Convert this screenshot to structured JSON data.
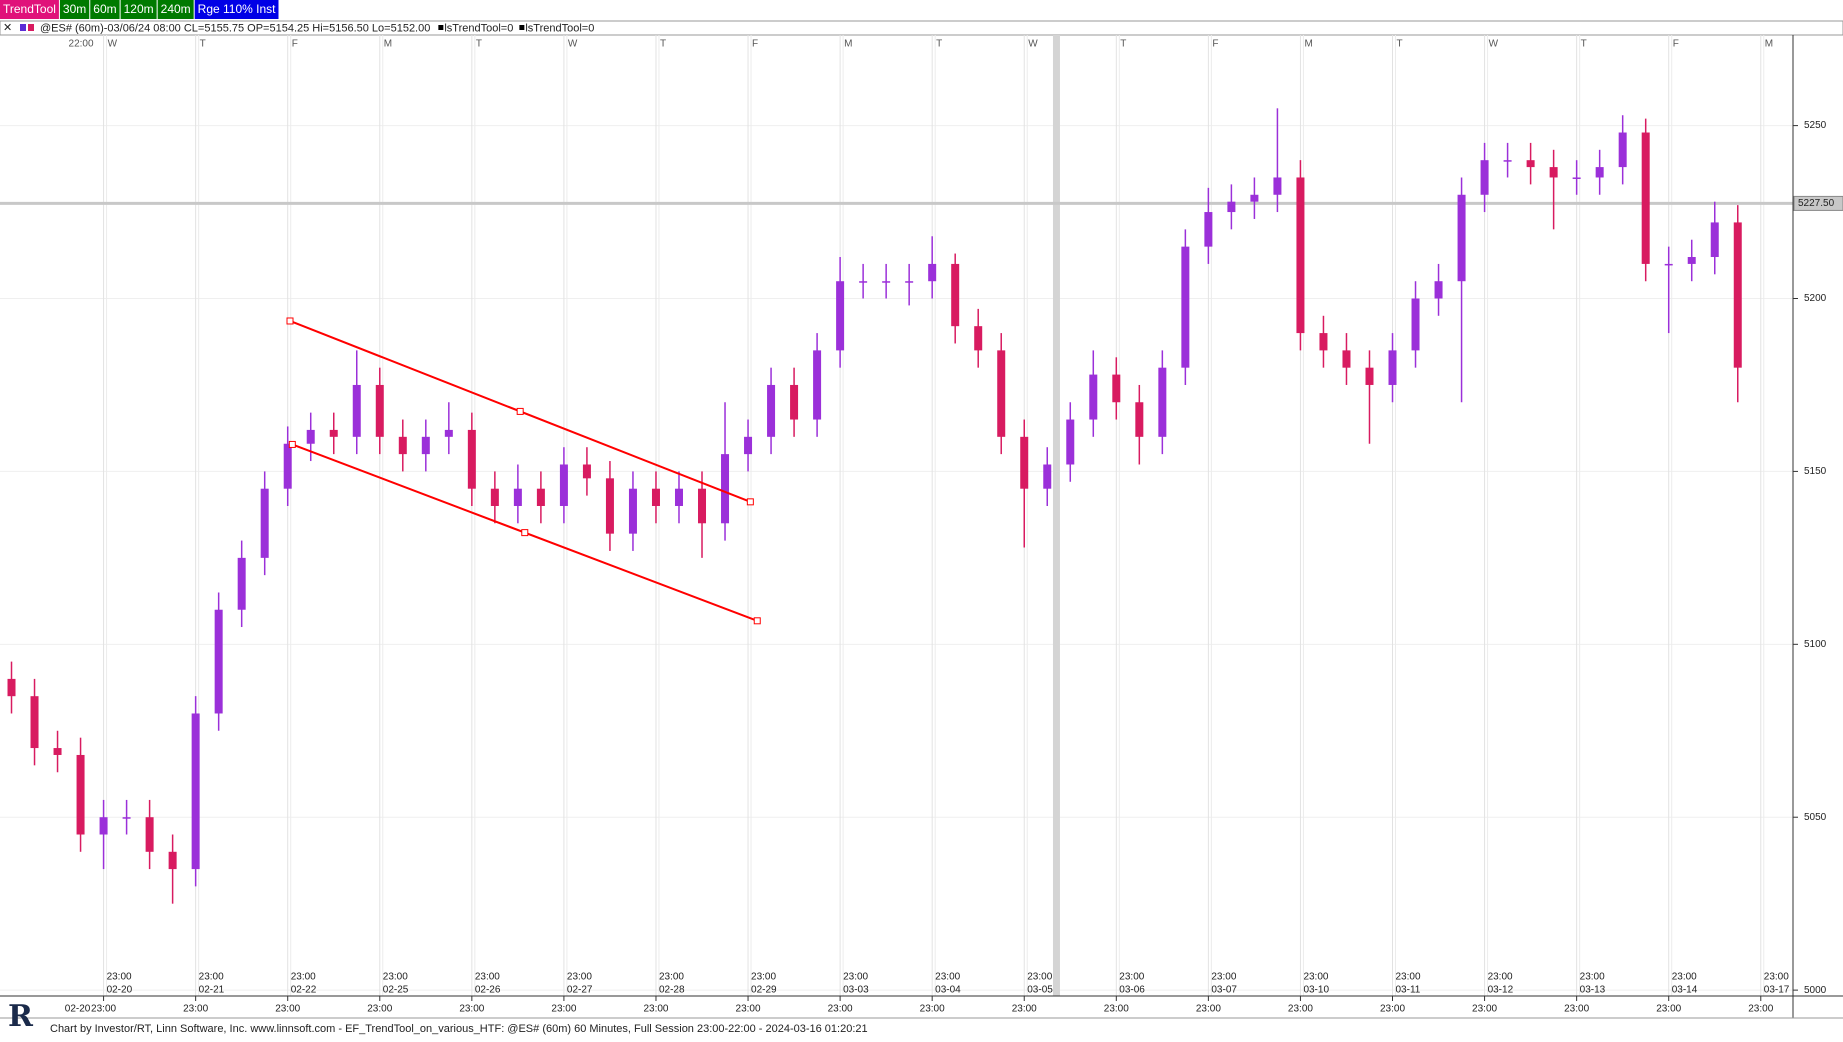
{
  "toolbar": [
    {
      "label": "TrendTool",
      "color": "#e0127a"
    },
    {
      "label": "30m",
      "color": "#007a00"
    },
    {
      "label": "60m",
      "color": "#007a00"
    },
    {
      "label": "120m",
      "color": "#007a00"
    },
    {
      "label": "240m",
      "color": "#007a00"
    },
    {
      "label": "Rge 110% Inst",
      "color": "#0000e6"
    }
  ],
  "info_bar": {
    "quote": "@ES# (60m)-03/06/24 08:00 CL=5155.75 OP=5154.25 Hi=5156.50 Lo=5152.00",
    "indicators": [
      "lsTrendTool=0",
      "lsTrendTool=0"
    ]
  },
  "footer": "Chart by Investor/RT, Linn Software, Inc. www.linnsoft.com - EF_TrendTool_on_various_HTF: @ES# (60m) 60 Minutes, Full Session 23:00-22:00 - 2024-03-16 01:20:21",
  "chart_data": {
    "type": "candlestick",
    "up_color": "#9b30d9",
    "down_color": "#d81b60",
    "xlim": [
      -0.5,
      77.4
    ],
    "ylim": [
      4998.3,
      5276.2
    ],
    "yticks": [
      5000,
      5050,
      5100,
      5150,
      5200,
      5250
    ],
    "xticks": [
      {
        "value": 4,
        "label": "02-20"
      },
      {
        "value": 8,
        "label": "02-21"
      },
      {
        "value": 12,
        "label": "02-22"
      },
      {
        "value": 16,
        "label": "02-25"
      },
      {
        "value": 20,
        "label": "02-26"
      },
      {
        "value": 24,
        "label": "02-27"
      },
      {
        "value": 28,
        "label": "02-28"
      },
      {
        "value": 32,
        "label": "02-29"
      },
      {
        "value": 36,
        "label": "03-03"
      },
      {
        "value": 40,
        "label": "03-04"
      },
      {
        "value": 44,
        "label": "03-05"
      },
      {
        "value": 48,
        "label": "03-06"
      },
      {
        "value": 52,
        "label": "03-07"
      },
      {
        "value": 56,
        "label": "03-10"
      },
      {
        "value": 60,
        "label": "03-11"
      },
      {
        "value": 64,
        "label": "03-12"
      },
      {
        "value": 68,
        "label": "03-13"
      },
      {
        "value": 72,
        "label": "03-14"
      },
      {
        "value": 76,
        "label": "03-17"
      }
    ],
    "xtick_times": [
      "23:00",
      "23:00",
      "23:00",
      "23:00",
      "23:00",
      "23:00",
      "23:00",
      "23:00",
      "23:00",
      "23:00",
      "23:00",
      "23:00",
      "23:00",
      "23:00",
      "23:00",
      "23:00",
      "23:00",
      "23:00",
      "23:00"
    ],
    "xtick_weekdays": [
      "W",
      "T",
      "F",
      "M",
      "T",
      "W",
      "T",
      "F",
      "M",
      "T",
      "W",
      "T",
      "F",
      "M",
      "T",
      "W",
      "T",
      "F",
      "M"
    ],
    "top_start_time": "22:00",
    "bottom_axis": {
      "start_label": "02-20",
      "labels": [
        "23:00",
        "23:00",
        "23:00",
        "23:00",
        "23:00",
        "23:00",
        "23:00",
        "23:00",
        "23:00",
        "23:00",
        "23:00",
        "23:00",
        "23:00",
        "23:00",
        "23:00",
        "23:00",
        "23:00",
        "23:00",
        "23:00"
      ]
    },
    "grid": true,
    "highlight_x": 45.4,
    "hline": {
      "value": 5227.5,
      "label": "5227.50",
      "color": "#c8c8c8"
    },
    "open": [
      5090,
      5085,
      5070,
      5068,
      5045,
      5050,
      5050,
      5040,
      5035,
      5080,
      5110,
      5125,
      5145,
      5158,
      5162,
      5160,
      5175,
      5160,
      5155,
      5160,
      5162,
      5145,
      5140,
      5145,
      5140,
      5152,
      5148,
      5132,
      5145,
      5140,
      5145,
      5135,
      5155,
      5160,
      5175,
      5165,
      5185,
      5205,
      5205,
      5205,
      5205,
      5210,
      5192,
      5185,
      5160,
      5145,
      5152,
      5165,
      5178,
      5170,
      5160,
      5180,
      5215,
      5225,
      5228,
      5230,
      5235,
      5190,
      5185,
      5180,
      5175,
      5185,
      5200,
      5205,
      5230,
      5240,
      5240,
      5238,
      5235,
      5235,
      5238,
      5248,
      5210,
      5210,
      5212,
      5222
    ],
    "high": [
      5095,
      5090,
      5075,
      5073,
      5055,
      5055,
      5055,
      5045,
      5085,
      5115,
      5130,
      5150,
      5163,
      5167,
      5167,
      5185,
      5180,
      5165,
      5165,
      5170,
      5167,
      5150,
      5152,
      5150,
      5157,
      5157,
      5153,
      5150,
      5150,
      5150,
      5150,
      5170,
      5165,
      5180,
      5180,
      5190,
      5212,
      5210,
      5210,
      5210,
      5218,
      5213,
      5197,
      5190,
      5165,
      5157,
      5170,
      5185,
      5183,
      5175,
      5185,
      5220,
      5232,
      5233,
      5235,
      5255,
      5240,
      5195,
      5190,
      5185,
      5190,
      5205,
      5210,
      5235,
      5245,
      5245,
      5245,
      5243,
      5240,
      5243,
      5253,
      5252,
      5215,
      5217,
      5228,
      5227
    ],
    "low": [
      5080,
      5065,
      5063,
      5040,
      5035,
      5045,
      5035,
      5025,
      5030,
      5075,
      5105,
      5120,
      5140,
      5153,
      5155,
      5155,
      5155,
      5150,
      5150,
      5155,
      5140,
      5135,
      5135,
      5135,
      5135,
      5143,
      5127,
      5127,
      5135,
      5135,
      5125,
      5130,
      5150,
      5155,
      5160,
      5160,
      5180,
      5200,
      5200,
      5198,
      5200,
      5187,
      5180,
      5155,
      5128,
      5140,
      5147,
      5160,
      5165,
      5152,
      5155,
      5175,
      5210,
      5220,
      5223,
      5225,
      5185,
      5180,
      5175,
      5158,
      5170,
      5180,
      5195,
      5170,
      5225,
      5235,
      5233,
      5220,
      5230,
      5230,
      5233,
      5205,
      5190,
      5205,
      5207,
      5170
    ],
    "close": [
      5085,
      5070,
      5068,
      5045,
      5050,
      5050,
      5040,
      5035,
      5080,
      5110,
      5125,
      5145,
      5158,
      5162,
      5160,
      5175,
      5160,
      5155,
      5160,
      5162,
      5145,
      5140,
      5145,
      5140,
      5152,
      5148,
      5132,
      5145,
      5140,
      5145,
      5135,
      5155,
      5160,
      5175,
      5165,
      5185,
      5205,
      5205,
      5205,
      5205,
      5210,
      5192,
      5185,
      5160,
      5145,
      5152,
      5165,
      5178,
      5170,
      5160,
      5180,
      5215,
      5225,
      5228,
      5230,
      5235,
      5190,
      5185,
      5180,
      5175,
      5185,
      5200,
      5205,
      5230,
      5240,
      5240,
      5238,
      5235,
      5235,
      5238,
      5248,
      5210,
      5210,
      5212,
      5222,
      5180
    ],
    "trend_lines": [
      {
        "x": [
          12.1,
          32.1
        ],
        "y": [
          5193.5,
          5141.2
        ],
        "color": "#ff0000"
      },
      {
        "x": [
          12.2,
          32.4
        ],
        "y": [
          5157.8,
          5106.8
        ],
        "color": "#ff0000"
      }
    ]
  }
}
